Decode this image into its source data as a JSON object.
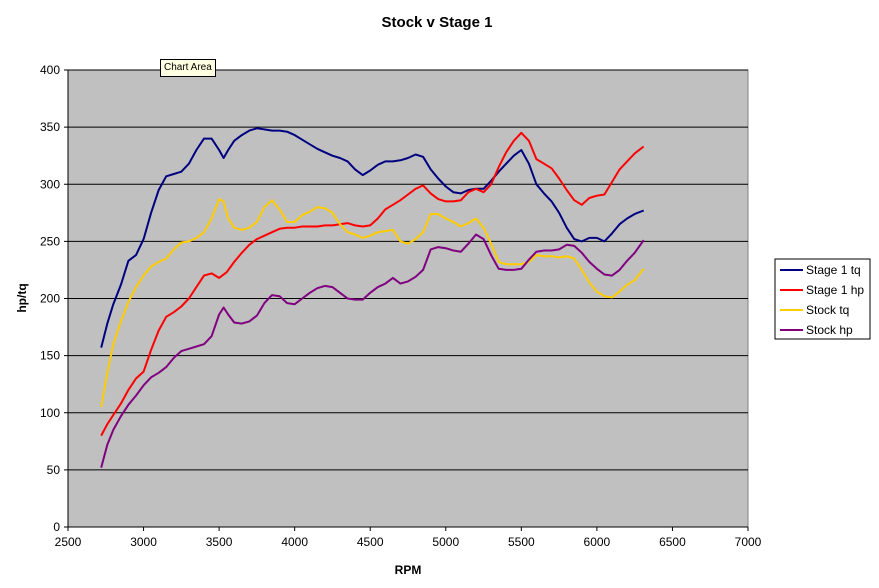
{
  "tooltip": "Chart Area",
  "chart_data": {
    "type": "line",
    "title": "Stock v Stage 1",
    "xlabel": "RPM",
    "ylabel": "hp/tq",
    "xlim": [
      2500,
      7000
    ],
    "ylim": [
      0,
      400
    ],
    "xticks": [
      2500,
      3000,
      3500,
      4000,
      4500,
      5000,
      5500,
      6000,
      6500,
      7000
    ],
    "yticks": [
      0,
      50,
      100,
      150,
      200,
      250,
      300,
      350,
      400
    ],
    "grid": "horizontal",
    "legend_position": "right",
    "plot_background": "#c0c0c0",
    "series": [
      {
        "name": "Stage 1 tq",
        "color": "#000080",
        "points": [
          [
            2720,
            157
          ],
          [
            2760,
            178
          ],
          [
            2800,
            195
          ],
          [
            2850,
            212
          ],
          [
            2900,
            233
          ],
          [
            2950,
            238
          ],
          [
            3000,
            252
          ],
          [
            3050,
            275
          ],
          [
            3100,
            295
          ],
          [
            3150,
            307
          ],
          [
            3200,
            309
          ],
          [
            3250,
            311
          ],
          [
            3300,
            318
          ],
          [
            3350,
            330
          ],
          [
            3400,
            340
          ],
          [
            3450,
            340
          ],
          [
            3500,
            330
          ],
          [
            3530,
            323
          ],
          [
            3560,
            330
          ],
          [
            3600,
            338
          ],
          [
            3650,
            343
          ],
          [
            3700,
            347
          ],
          [
            3750,
            349
          ],
          [
            3800,
            348
          ],
          [
            3850,
            347
          ],
          [
            3900,
            347
          ],
          [
            3950,
            346
          ],
          [
            4000,
            343
          ],
          [
            4050,
            339
          ],
          [
            4100,
            335
          ],
          [
            4150,
            331
          ],
          [
            4200,
            328
          ],
          [
            4250,
            325
          ],
          [
            4300,
            323
          ],
          [
            4350,
            320
          ],
          [
            4400,
            313
          ],
          [
            4450,
            308
          ],
          [
            4500,
            312
          ],
          [
            4550,
            317
          ],
          [
            4600,
            320
          ],
          [
            4650,
            320
          ],
          [
            4700,
            321
          ],
          [
            4750,
            323
          ],
          [
            4800,
            326
          ],
          [
            4850,
            324
          ],
          [
            4900,
            313
          ],
          [
            4950,
            305
          ],
          [
            5000,
            298
          ],
          [
            5050,
            293
          ],
          [
            5100,
            292
          ],
          [
            5150,
            295
          ],
          [
            5200,
            296
          ],
          [
            5250,
            296
          ],
          [
            5300,
            303
          ],
          [
            5350,
            311
          ],
          [
            5400,
            318
          ],
          [
            5450,
            325
          ],
          [
            5500,
            330
          ],
          [
            5550,
            318
          ],
          [
            5600,
            300
          ],
          [
            5650,
            292
          ],
          [
            5700,
            285
          ],
          [
            5750,
            275
          ],
          [
            5800,
            262
          ],
          [
            5850,
            252
          ],
          [
            5900,
            250
          ],
          [
            5950,
            253
          ],
          [
            6000,
            253
          ],
          [
            6050,
            250
          ],
          [
            6100,
            257
          ],
          [
            6150,
            265
          ],
          [
            6200,
            270
          ],
          [
            6250,
            274
          ],
          [
            6310,
            277
          ]
        ]
      },
      {
        "name": "Stage 1 hp",
        "color": "#ff0000",
        "points": [
          [
            2720,
            80
          ],
          [
            2760,
            90
          ],
          [
            2800,
            98
          ],
          [
            2850,
            108
          ],
          [
            2900,
            120
          ],
          [
            2950,
            130
          ],
          [
            3000,
            136
          ],
          [
            3050,
            155
          ],
          [
            3100,
            172
          ],
          [
            3150,
            184
          ],
          [
            3200,
            188
          ],
          [
            3250,
            193
          ],
          [
            3300,
            200
          ],
          [
            3350,
            210
          ],
          [
            3400,
            220
          ],
          [
            3450,
            222
          ],
          [
            3500,
            218
          ],
          [
            3550,
            223
          ],
          [
            3600,
            232
          ],
          [
            3650,
            240
          ],
          [
            3700,
            247
          ],
          [
            3750,
            252
          ],
          [
            3800,
            255
          ],
          [
            3850,
            258
          ],
          [
            3900,
            261
          ],
          [
            3950,
            262
          ],
          [
            4000,
            262
          ],
          [
            4050,
            263
          ],
          [
            4100,
            263
          ],
          [
            4150,
            263
          ],
          [
            4200,
            264
          ],
          [
            4250,
            264
          ],
          [
            4300,
            265
          ],
          [
            4350,
            266
          ],
          [
            4400,
            264
          ],
          [
            4450,
            263
          ],
          [
            4500,
            264
          ],
          [
            4550,
            270
          ],
          [
            4600,
            278
          ],
          [
            4650,
            282
          ],
          [
            4700,
            286
          ],
          [
            4750,
            291
          ],
          [
            4800,
            296
          ],
          [
            4850,
            299
          ],
          [
            4900,
            292
          ],
          [
            4950,
            287
          ],
          [
            5000,
            285
          ],
          [
            5050,
            285
          ],
          [
            5100,
            286
          ],
          [
            5150,
            293
          ],
          [
            5200,
            296
          ],
          [
            5250,
            293
          ],
          [
            5300,
            300
          ],
          [
            5350,
            315
          ],
          [
            5400,
            328
          ],
          [
            5450,
            338
          ],
          [
            5500,
            345
          ],
          [
            5550,
            338
          ],
          [
            5600,
            322
          ],
          [
            5650,
            318
          ],
          [
            5700,
            314
          ],
          [
            5750,
            305
          ],
          [
            5800,
            295
          ],
          [
            5850,
            286
          ],
          [
            5900,
            282
          ],
          [
            5950,
            288
          ],
          [
            6000,
            290
          ],
          [
            6050,
            291
          ],
          [
            6100,
            302
          ],
          [
            6150,
            313
          ],
          [
            6200,
            320
          ],
          [
            6250,
            327
          ],
          [
            6310,
            333
          ]
        ]
      },
      {
        "name": "Stock tq",
        "color": "#ffcc00",
        "points": [
          [
            2720,
            105
          ],
          [
            2760,
            135
          ],
          [
            2800,
            160
          ],
          [
            2850,
            180
          ],
          [
            2900,
            197
          ],
          [
            2950,
            210
          ],
          [
            3000,
            220
          ],
          [
            3050,
            228
          ],
          [
            3100,
            232
          ],
          [
            3150,
            235
          ],
          [
            3200,
            243
          ],
          [
            3250,
            249
          ],
          [
            3300,
            250
          ],
          [
            3350,
            253
          ],
          [
            3400,
            258
          ],
          [
            3450,
            270
          ],
          [
            3500,
            287
          ],
          [
            3530,
            285
          ],
          [
            3560,
            270
          ],
          [
            3600,
            262
          ],
          [
            3650,
            260
          ],
          [
            3700,
            262
          ],
          [
            3750,
            267
          ],
          [
            3800,
            280
          ],
          [
            3850,
            286
          ],
          [
            3900,
            278
          ],
          [
            3950,
            267
          ],
          [
            4000,
            267
          ],
          [
            4050,
            273
          ],
          [
            4100,
            276
          ],
          [
            4150,
            280
          ],
          [
            4200,
            279
          ],
          [
            4250,
            275
          ],
          [
            4300,
            265
          ],
          [
            4350,
            258
          ],
          [
            4400,
            256
          ],
          [
            4450,
            253
          ],
          [
            4500,
            255
          ],
          [
            4550,
            258
          ],
          [
            4600,
            259
          ],
          [
            4650,
            260
          ],
          [
            4700,
            250
          ],
          [
            4750,
            248
          ],
          [
            4800,
            252
          ],
          [
            4850,
            258
          ],
          [
            4900,
            274
          ],
          [
            4950,
            274
          ],
          [
            5000,
            270
          ],
          [
            5050,
            267
          ],
          [
            5100,
            263
          ],
          [
            5150,
            266
          ],
          [
            5200,
            270
          ],
          [
            5250,
            262
          ],
          [
            5300,
            248
          ],
          [
            5350,
            232
          ],
          [
            5400,
            230
          ],
          [
            5450,
            230
          ],
          [
            5500,
            230
          ],
          [
            5550,
            232
          ],
          [
            5600,
            238
          ],
          [
            5650,
            237
          ],
          [
            5700,
            237
          ],
          [
            5750,
            236
          ],
          [
            5800,
            237
          ],
          [
            5850,
            235
          ],
          [
            5900,
            225
          ],
          [
            5950,
            214
          ],
          [
            6000,
            206
          ],
          [
            6050,
            202
          ],
          [
            6100,
            201
          ],
          [
            6150,
            206
          ],
          [
            6200,
            212
          ],
          [
            6250,
            216
          ],
          [
            6310,
            226
          ]
        ]
      },
      {
        "name": "Stock hp",
        "color": "#800080",
        "points": [
          [
            2720,
            52
          ],
          [
            2760,
            72
          ],
          [
            2800,
            85
          ],
          [
            2850,
            97
          ],
          [
            2900,
            107
          ],
          [
            2950,
            115
          ],
          [
            3000,
            124
          ],
          [
            3050,
            131
          ],
          [
            3100,
            135
          ],
          [
            3150,
            140
          ],
          [
            3200,
            148
          ],
          [
            3250,
            154
          ],
          [
            3300,
            156
          ],
          [
            3350,
            158
          ],
          [
            3400,
            160
          ],
          [
            3450,
            167
          ],
          [
            3500,
            186
          ],
          [
            3530,
            192
          ],
          [
            3560,
            186
          ],
          [
            3600,
            179
          ],
          [
            3650,
            178
          ],
          [
            3700,
            180
          ],
          [
            3750,
            185
          ],
          [
            3800,
            196
          ],
          [
            3850,
            203
          ],
          [
            3900,
            202
          ],
          [
            3950,
            196
          ],
          [
            4000,
            195
          ],
          [
            4050,
            200
          ],
          [
            4100,
            205
          ],
          [
            4150,
            209
          ],
          [
            4200,
            211
          ],
          [
            4250,
            210
          ],
          [
            4300,
            205
          ],
          [
            4350,
            200
          ],
          [
            4400,
            199
          ],
          [
            4450,
            199
          ],
          [
            4500,
            205
          ],
          [
            4550,
            210
          ],
          [
            4600,
            213
          ],
          [
            4650,
            218
          ],
          [
            4700,
            213
          ],
          [
            4750,
            215
          ],
          [
            4800,
            219
          ],
          [
            4850,
            225
          ],
          [
            4900,
            243
          ],
          [
            4950,
            245
          ],
          [
            5000,
            244
          ],
          [
            5050,
            242
          ],
          [
            5100,
            241
          ],
          [
            5150,
            248
          ],
          [
            5200,
            256
          ],
          [
            5250,
            252
          ],
          [
            5300,
            238
          ],
          [
            5350,
            226
          ],
          [
            5400,
            225
          ],
          [
            5450,
            225
          ],
          [
            5500,
            226
          ],
          [
            5550,
            234
          ],
          [
            5600,
            241
          ],
          [
            5650,
            242
          ],
          [
            5700,
            242
          ],
          [
            5750,
            243
          ],
          [
            5800,
            247
          ],
          [
            5850,
            246
          ],
          [
            5900,
            240
          ],
          [
            5950,
            232
          ],
          [
            6000,
            226
          ],
          [
            6050,
            221
          ],
          [
            6100,
            220
          ],
          [
            6150,
            225
          ],
          [
            6200,
            233
          ],
          [
            6250,
            240
          ],
          [
            6310,
            251
          ]
        ]
      }
    ]
  }
}
